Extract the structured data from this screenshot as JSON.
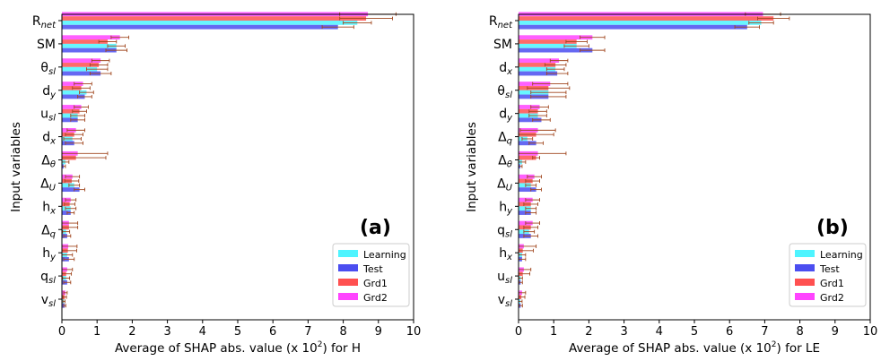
{
  "series_colors": {
    "Learning": "#4ef4ff",
    "Test": "#4b4ef0",
    "Grd1": "#ff5050",
    "Grd2": "#ff44ff"
  },
  "error_color": "#a0461e",
  "chart_data": [
    {
      "type": "bar",
      "orientation": "horizontal",
      "panel_label": "(a)",
      "xlabel_main": "Average of SHAP abs. value (x 10",
      "xlabel_exp": "2",
      "xlabel_tail": ") for H",
      "ylabel": "Input variables",
      "xlim": [
        0,
        10
      ],
      "xticks": [
        "0",
        "1",
        "2",
        "3",
        "4",
        "5",
        "6",
        "7",
        "8",
        "9",
        "10"
      ],
      "legend": {
        "position": "lower-right",
        "entries": [
          "Learning",
          "Test",
          "Grd1",
          "Grd2"
        ]
      },
      "categories": [
        {
          "base": "R",
          "sub": "net"
        },
        {
          "base": "SM",
          "sub": ""
        },
        {
          "base": "θ",
          "sub": "sl"
        },
        {
          "base": "d",
          "sub": "y"
        },
        {
          "base": "u",
          "sub": "sl"
        },
        {
          "base": "d",
          "sub": "x"
        },
        {
          "base": "Δ",
          "sub": "θ"
        },
        {
          "base": "Δ",
          "sub": "U"
        },
        {
          "base": "h",
          "sub": "x"
        },
        {
          "base": "Δ",
          "sub": "q"
        },
        {
          "base": "h",
          "sub": "y"
        },
        {
          "base": "q",
          "sub": "sl"
        },
        {
          "base": "v",
          "sub": "sl"
        }
      ],
      "series": [
        {
          "name": "Grd2",
          "values": [
            8.7,
            1.65,
            1.1,
            0.6,
            0.55,
            0.4,
            0.45,
            0.3,
            0.25,
            0.2,
            0.18,
            0.15,
            0.1
          ],
          "errors": [
            0.8,
            0.25,
            0.25,
            0.25,
            0.2,
            0.25,
            0.85,
            0.2,
            0.15,
            0.25,
            0.25,
            0.15,
            0.05
          ]
        },
        {
          "name": "Grd1",
          "values": [
            8.65,
            1.3,
            1.05,
            0.55,
            0.5,
            0.35,
            0.4,
            0.28,
            0.22,
            0.2,
            0.17,
            0.12,
            0.08
          ],
          "errors": [
            0.75,
            0.25,
            0.25,
            0.25,
            0.2,
            0.25,
            0.85,
            0.2,
            0.15,
            0.25,
            0.25,
            0.15,
            0.05
          ]
        },
        {
          "name": "Learning",
          "values": [
            8.4,
            1.55,
            1.0,
            0.7,
            0.45,
            0.3,
            0.1,
            0.35,
            0.25,
            0.12,
            0.15,
            0.12,
            0.06
          ],
          "errors": [
            0.4,
            0.25,
            0.3,
            0.2,
            0.2,
            0.25,
            0.1,
            0.15,
            0.15,
            0.1,
            0.15,
            0.1,
            0.03
          ]
        },
        {
          "name": "Test",
          "values": [
            7.85,
            1.55,
            1.1,
            0.65,
            0.45,
            0.35,
            0.05,
            0.5,
            0.25,
            0.15,
            0.2,
            0.15,
            0.08
          ],
          "errors": [
            0.45,
            0.3,
            0.3,
            0.2,
            0.2,
            0.25,
            0.05,
            0.15,
            0.1,
            0.1,
            0.15,
            0.1,
            0.03
          ]
        }
      ]
    },
    {
      "type": "bar",
      "orientation": "horizontal",
      "panel_label": "(b)",
      "xlabel_main": "Average of SHAP abs. value (x 10",
      "xlabel_exp": "2",
      "xlabel_tail": ") for LE",
      "ylabel": "Input variables",
      "xlim": [
        0,
        10
      ],
      "xticks": [
        "0",
        "1",
        "2",
        "3",
        "4",
        "5",
        "6",
        "7",
        "8",
        "9",
        "10"
      ],
      "legend": {
        "position": "lower-right",
        "entries": [
          "Learning",
          "Test",
          "Grd1",
          "Grd2"
        ]
      },
      "categories": [
        {
          "base": "R",
          "sub": "net"
        },
        {
          "base": "SM",
          "sub": ""
        },
        {
          "base": "d",
          "sub": "x"
        },
        {
          "base": "θ",
          "sub": "sl"
        },
        {
          "base": "d",
          "sub": "y"
        },
        {
          "base": "Δ",
          "sub": "q"
        },
        {
          "base": "Δ",
          "sub": "θ"
        },
        {
          "base": "Δ",
          "sub": "U"
        },
        {
          "base": "h",
          "sub": "y"
        },
        {
          "base": "q",
          "sub": "sl"
        },
        {
          "base": "h",
          "sub": "x"
        },
        {
          "base": "u",
          "sub": "sl"
        },
        {
          "base": "v",
          "sub": "sl"
        }
      ],
      "series": [
        {
          "name": "Grd2",
          "values": [
            6.95,
            2.1,
            1.15,
            0.9,
            0.6,
            0.55,
            0.55,
            0.45,
            0.4,
            0.4,
            0.15,
            0.15,
            0.1
          ],
          "errors": [
            0.5,
            0.35,
            0.25,
            0.5,
            0.25,
            0.5,
            0.8,
            0.2,
            0.2,
            0.2,
            0.35,
            0.2,
            0.1
          ]
        },
        {
          "name": "Grd1",
          "values": [
            7.25,
            1.65,
            1.05,
            0.85,
            0.55,
            0.5,
            0.5,
            0.4,
            0.35,
            0.35,
            0.12,
            0.12,
            0.08
          ],
          "errors": [
            0.45,
            0.3,
            0.3,
            0.6,
            0.25,
            0.5,
            0.1,
            0.2,
            0.2,
            0.2,
            0.3,
            0.2,
            0.1
          ]
        },
        {
          "name": "Learning",
          "values": [
            6.9,
            1.65,
            1.05,
            0.85,
            0.55,
            0.25,
            0.1,
            0.35,
            0.35,
            0.3,
            0.1,
            0.06,
            0.05
          ],
          "errors": [
            0.35,
            0.35,
            0.25,
            0.5,
            0.25,
            0.15,
            0.1,
            0.15,
            0.15,
            0.15,
            0.1,
            0.05,
            0.05
          ]
        },
        {
          "name": "Test",
          "values": [
            6.5,
            2.1,
            1.1,
            0.85,
            0.65,
            0.5,
            0.05,
            0.5,
            0.35,
            0.35,
            0.1,
            0.06,
            0.06
          ],
          "errors": [
            0.35,
            0.35,
            0.3,
            0.5,
            0.25,
            0.2,
            0.05,
            0.15,
            0.15,
            0.2,
            0.1,
            0.05,
            0.05
          ]
        }
      ]
    }
  ]
}
